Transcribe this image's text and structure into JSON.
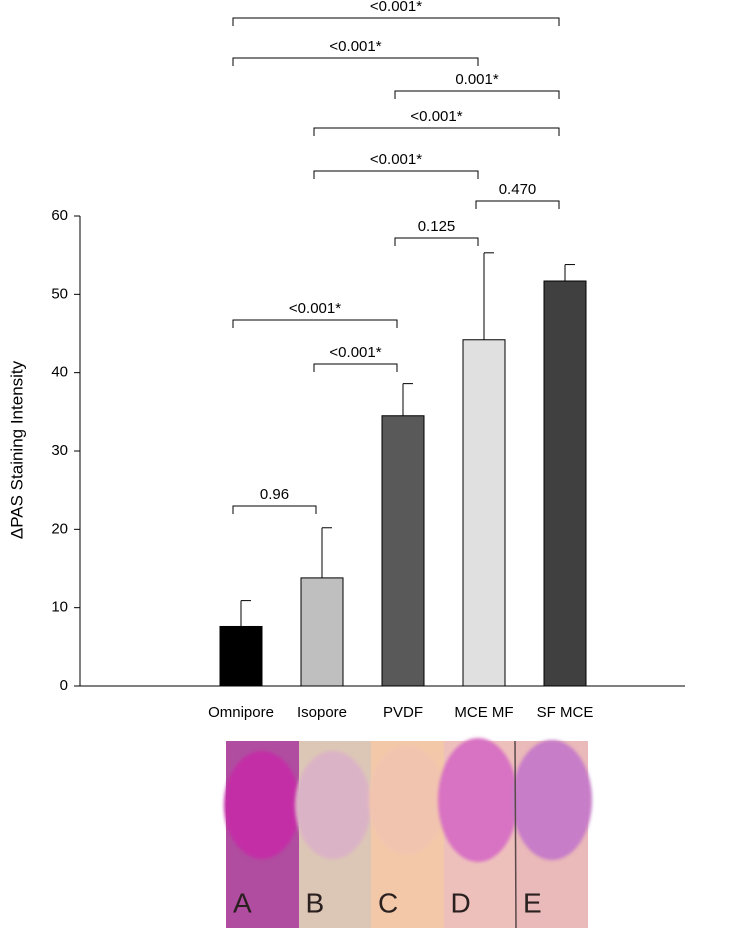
{
  "chart_data": {
    "type": "bar",
    "ylabel": "ΔPAS Staining Intensity",
    "categories": [
      "Omnipore",
      "Isopore",
      "PVDF",
      "MCE MF",
      "SF MCE"
    ],
    "values": [
      7.6,
      13.8,
      34.5,
      44.2,
      51.7
    ],
    "errors": [
      3.3,
      6.4,
      4.1,
      11.1,
      2.1
    ],
    "colors": [
      "#000000",
      "#bfbfbf",
      "#595959",
      "#e0e0e0",
      "#404040"
    ],
    "ylim": [
      0,
      60
    ],
    "yticks": [
      0,
      10,
      20,
      30,
      40,
      50,
      60
    ],
    "brackets": [
      {
        "from": 0,
        "to": 4,
        "label": "<0.001*"
      },
      {
        "from": 0,
        "to": 3,
        "label": "<0.001*"
      },
      {
        "from": 2,
        "to": 4,
        "label": "0.001*"
      },
      {
        "from": 1,
        "to": 4,
        "label": "<0.001*"
      },
      {
        "from": 1,
        "to": 3,
        "label": "<0.001*"
      },
      {
        "from": 3,
        "to": 4,
        "label": "0.470"
      },
      {
        "from": 2,
        "to": 3,
        "label": "0.125"
      },
      {
        "from": 0,
        "to": 2,
        "label": "<0.001*"
      },
      {
        "from": 1,
        "to": 2,
        "label": "<0.001*"
      },
      {
        "from": 0,
        "to": 1,
        "label": "0.96"
      }
    ],
    "panels": [
      "A",
      "B",
      "C",
      "D",
      "E"
    ]
  }
}
